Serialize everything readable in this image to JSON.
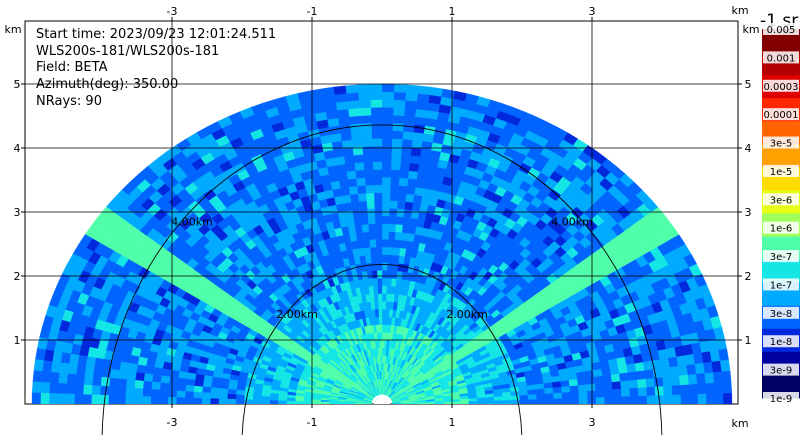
{
  "info": {
    "start_time": "Start time: 2023/09/23 12:01:24.511",
    "instrument": "WLS200s-181/WLS200s-181",
    "field": "Field: BETA",
    "azimuth": "Azimuth(deg): 350.00",
    "nrays": "NRays: 90"
  },
  "colorbar": {
    "title": "-1 sr",
    "labels": [
      "0.005",
      "0.001",
      "0.0003",
      "0.0001",
      "3e-5",
      "1e-5",
      "3e-6",
      "1e-6",
      "3e-7",
      "1e-7",
      "3e-8",
      "1e-8",
      "3e-9",
      "1e-9"
    ],
    "colors": [
      "#820000",
      "#b40000",
      "#dc0000",
      "#ff2800",
      "#ff6400",
      "#ffa000",
      "#ffdc00",
      "#e6ff14",
      "#a0ff5a",
      "#50ffaa",
      "#14e6e6",
      "#00aaff",
      "#0064ff",
      "#0028dc",
      "#0000a0",
      "#000064"
    ]
  },
  "chart_data": {
    "type": "heatmap",
    "description_scale": "RHI backscatter coefficient BETA",
    "x_unit": "km",
    "y_unit": "km",
    "xlim": [
      -5.1,
      5.35
    ],
    "ylim": [
      0,
      5.3
    ],
    "x_ticks": [
      "-3",
      "-1",
      "1",
      "3"
    ],
    "x_tick_values": [
      -3,
      -1,
      1,
      3
    ],
    "y_ticks": [
      "1",
      "2",
      "3",
      "4",
      "5"
    ],
    "y_tick_values": [
      1,
      2,
      3,
      4,
      5
    ],
    "range_rings": [
      {
        "radius_km": 2,
        "label": "2.00km"
      },
      {
        "radius_km": 4,
        "label": "4.00km"
      }
    ],
    "max_range_km": 5.0,
    "grid": true
  }
}
